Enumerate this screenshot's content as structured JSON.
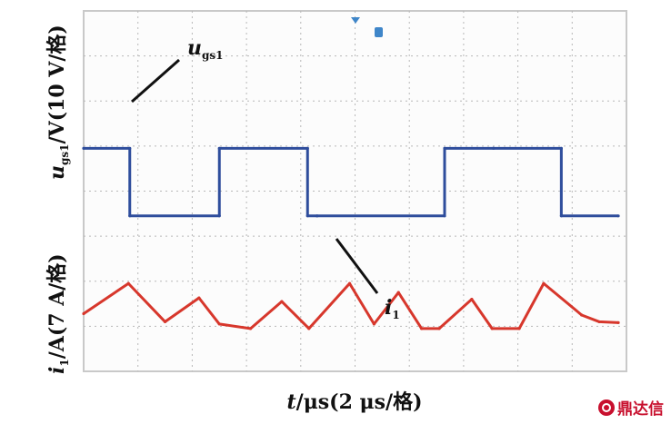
{
  "chart_data": {
    "type": "line",
    "grid": true,
    "x_axis": {
      "label_var": "t",
      "label_unit": "/μs(2 μs/格)",
      "per_division_us": 2,
      "divisions": 10,
      "range_us": [
        0,
        20
      ]
    },
    "y_axes": [
      {
        "label_var": "u",
        "label_sub": "gs1",
        "label_unit": "/V(10 V/格)",
        "per_division_v": 10
      },
      {
        "label_var": "i",
        "label_sub": "1",
        "label_unit": "/A(7 A/格)",
        "per_division_a": 7
      }
    ],
    "series": [
      {
        "name": "ugs1",
        "annot_var": "u",
        "annot_sub": "gs1",
        "color": "#2e4d9c",
        "unit": "div",
        "x": [
          0,
          1.7,
          1.7,
          5.0,
          5.0,
          8.25,
          8.25,
          8.6,
          8.6,
          13.3,
          13.3,
          15.1,
          15.1,
          17.6,
          17.6,
          19.7
        ],
        "y": [
          4.95,
          4.95,
          3.45,
          3.45,
          4.95,
          4.95,
          3.45,
          3.45,
          3.45,
          3.45,
          4.95,
          4.95,
          4.95,
          4.95,
          3.45,
          3.45
        ]
      },
      {
        "name": "i1",
        "annot_var": "i",
        "annot_sub": "1",
        "color": "#d7372c",
        "unit": "div",
        "x": [
          0,
          1.65,
          3.0,
          4.25,
          5.0,
          6.15,
          7.3,
          8.3,
          9.8,
          10.7,
          11.6,
          12.45,
          13.1,
          14.3,
          15.05,
          16.05,
          16.95,
          18.35,
          19.0,
          19.7
        ],
        "y": [
          1.28,
          1.95,
          1.1,
          1.63,
          1.05,
          0.95,
          1.55,
          0.95,
          1.95,
          1.05,
          1.75,
          0.95,
          0.95,
          1.6,
          0.95,
          0.95,
          1.95,
          1.25,
          1.1,
          1.08
        ]
      }
    ]
  },
  "watermark_text": "鼎达信"
}
